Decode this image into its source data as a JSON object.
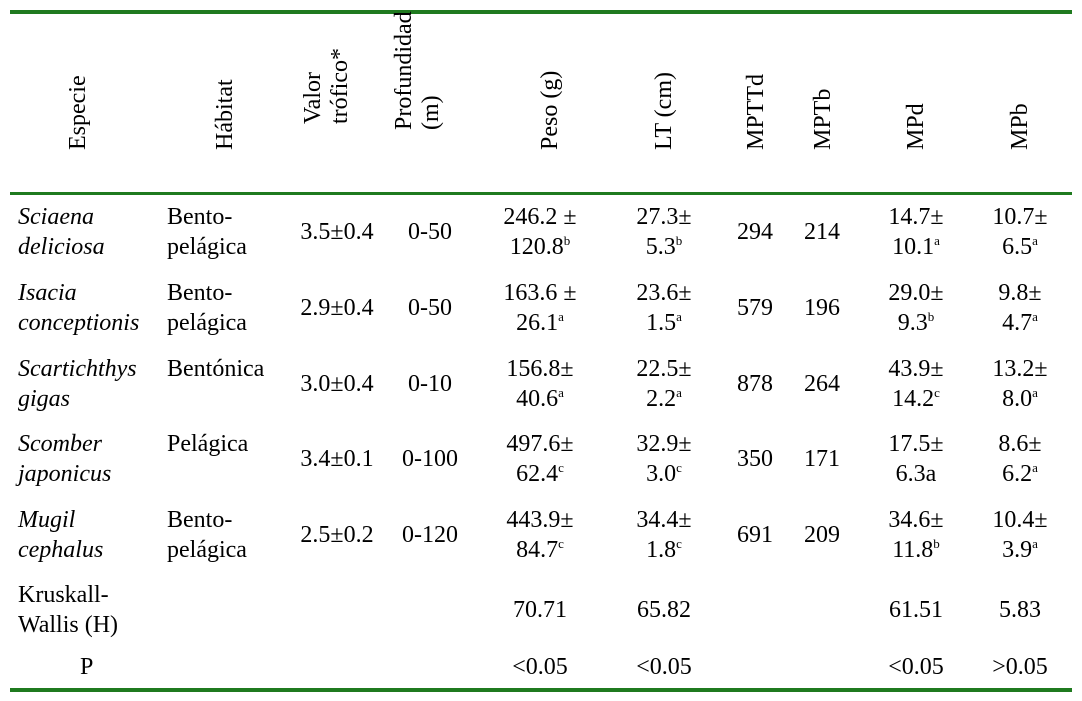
{
  "header": [
    "Especie",
    "Hábitat",
    "Valor trófico*",
    "Profundidad (m)",
    "Peso (g)",
    "LT (cm)",
    "MPTTd",
    "MPTb",
    "MPd",
    "MPb"
  ],
  "header_lines": {
    "valor": [
      "Valor",
      "trófico*"
    ],
    "prof": [
      "Profundidad",
      "(m)"
    ]
  },
  "rows": [
    {
      "especie": [
        "Sciaena",
        "deliciosa"
      ],
      "habitat": [
        "Bento-",
        "pelágica"
      ],
      "valor": "3.5±0.4",
      "prof": "0-50",
      "peso": [
        "246.2 ±",
        "120.8",
        "b"
      ],
      "lt": [
        "27.3±",
        "5.3",
        "b"
      ],
      "mpttd": "294",
      "mptb": "214",
      "mpd": [
        "14.7±",
        "10.1",
        "a"
      ],
      "mpb": [
        "10.7±",
        "6.5",
        "a"
      ]
    },
    {
      "especie": [
        "Isacia",
        "conceptionis"
      ],
      "habitat": [
        "Bento-",
        "pelágica"
      ],
      "valor": "2.9±0.4",
      "prof": "0-50",
      "peso": [
        "163.6 ±",
        "26.1",
        "a"
      ],
      "lt": [
        "23.6±",
        "1.5",
        "a"
      ],
      "mpttd": "579",
      "mptb": "196",
      "mpd": [
        "29.0±",
        "9.3",
        "b"
      ],
      "mpb": [
        "9.8±",
        "4.7",
        "a"
      ]
    },
    {
      "especie": [
        "Scartichthys",
        "gigas"
      ],
      "habitat": [
        "Bentónica",
        ""
      ],
      "valor": "3.0±0.4",
      "prof": "0-10",
      "peso": [
        "156.8±",
        "40.6",
        "a"
      ],
      "lt": [
        "22.5±",
        "2.2",
        "a"
      ],
      "mpttd": "878",
      "mptb": "264",
      "mpd": [
        "43.9±",
        "14.2",
        "c"
      ],
      "mpb": [
        "13.2±",
        "8.0",
        "a"
      ]
    },
    {
      "especie": [
        "Scomber",
        "japonicus"
      ],
      "habitat": [
        "Pelágica",
        ""
      ],
      "valor": "3.4±0.1",
      "prof": "0-100",
      "peso": [
        "497.6±",
        "62.4",
        "c"
      ],
      "lt": [
        "32.9±",
        "3.0",
        "c"
      ],
      "mpttd": "350",
      "mptb": "171",
      "mpd": [
        "17.5±",
        "6.3a",
        ""
      ],
      "mpb": [
        "8.6±",
        "6.2",
        "a"
      ]
    },
    {
      "especie": [
        "Mugil",
        "cephalus"
      ],
      "habitat": [
        "Bento-",
        "pelágica"
      ],
      "valor": "2.5±0.2",
      "prof": "0-120",
      "peso": [
        "443.9±",
        "84.7",
        "c"
      ],
      "lt": [
        "34.4±",
        "1.8",
        "c"
      ],
      "mpttd": "691",
      "mptb": "209",
      "mpd": [
        "34.6±",
        "11.8",
        "b"
      ],
      "mpb": [
        "10.4±",
        "3.9",
        "a"
      ]
    }
  ],
  "kruskal": {
    "label": [
      "Kruskall-",
      "Wallis (H)"
    ],
    "peso": "70.71",
    "lt": "65.82",
    "mpd": "61.51",
    "mpb": "5.83"
  },
  "p": {
    "label": "P",
    "peso": "<0.05",
    "lt": "<0.05",
    "mpd": "<0.05",
    "mpb": ">0.05"
  },
  "colors": {
    "rule": "#1f7a1f",
    "text": "#000000"
  }
}
